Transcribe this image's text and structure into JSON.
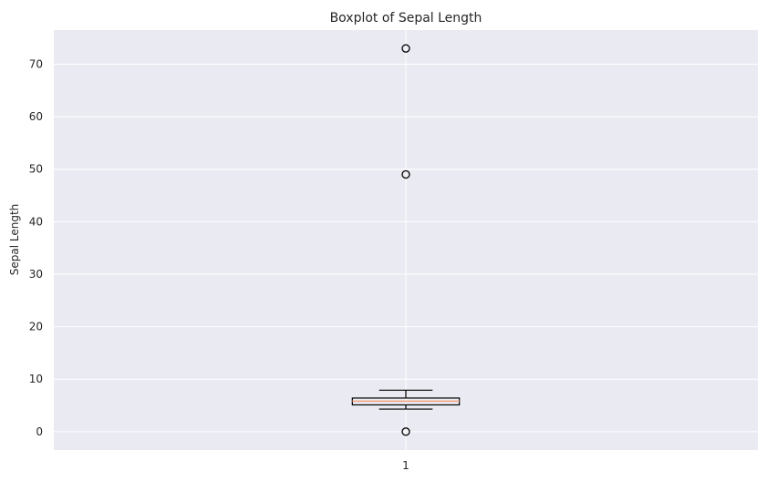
{
  "chart_data": {
    "type": "boxplot",
    "title": "Boxplot of Sepal Length",
    "xlabel": "",
    "ylabel": "Sepal Length",
    "categories": [
      "1"
    ],
    "ylim": [
      -3.5,
      76.5
    ],
    "yticks": [
      0,
      10,
      20,
      30,
      40,
      50,
      60,
      70
    ],
    "grid": true,
    "boxes": [
      {
        "category": "1",
        "whisker_low": 4.3,
        "q1": 5.1,
        "median": 5.8,
        "q3": 6.4,
        "whisker_high": 7.9,
        "outliers": [
          73,
          49,
          0
        ]
      }
    ],
    "colors": {
      "plot_background": "#eaeaf2",
      "grid": "#ffffff",
      "box_edge": "#000000",
      "median_line": "#f4a582",
      "outlier_edge": "#000000"
    }
  }
}
